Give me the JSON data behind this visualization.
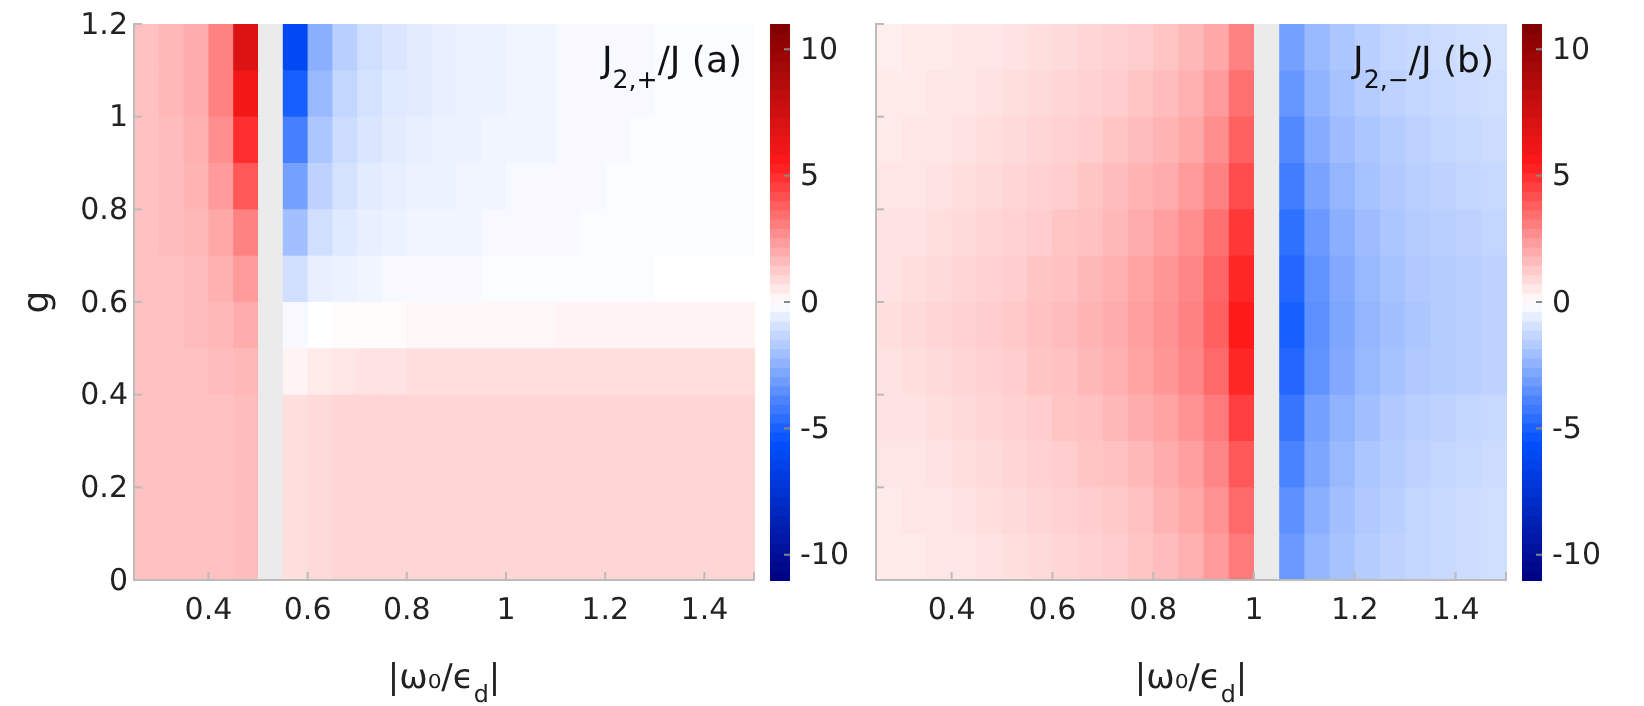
{
  "chart_data": [
    {
      "type": "heatmap",
      "title": "J$_{2,+}$/J (a)",
      "xlabel": "|ω₀/ϵ$_{d}$|",
      "ylabel": "g",
      "x": [
        0.275,
        0.325,
        0.375,
        0.425,
        0.475,
        0.525,
        0.575,
        0.625,
        0.675,
        0.725,
        0.775,
        0.825,
        0.875,
        0.925,
        0.975,
        1.025,
        1.075,
        1.125,
        1.175,
        1.225,
        1.275,
        1.325,
        1.375,
        1.425,
        1.475
      ],
      "y": [
        1.15,
        1.05,
        0.95,
        0.85,
        0.75,
        0.65,
        0.55,
        0.45,
        0.35,
        0.25,
        0.15,
        0.05
      ],
      "xlim": [
        0.25,
        1.5
      ],
      "xticks": [
        0.4,
        0.6,
        0.8,
        1,
        1.2,
        1.4
      ],
      "ylim": [
        0,
        1.2
      ],
      "yticks": [
        0,
        0.2,
        0.4,
        0.6,
        0.8,
        1,
        1.2
      ],
      "clim": [
        -11,
        11
      ],
      "cticks": [
        -10,
        -5,
        0,
        5,
        10
      ],
      "cells": [
        [
          1.5,
          1.7,
          2,
          3,
          7,
          null,
          -6,
          -2.5,
          -1.5,
          -1,
          -0.8,
          -0.6,
          -0.5,
          -0.4,
          -0.4,
          -0.3,
          -0.3,
          -0.2,
          -0.2,
          -0.2,
          -0.2,
          -0.1,
          -0.1,
          -0.1,
          -0.1
        ],
        [
          1.5,
          1.7,
          2,
          3,
          6,
          null,
          -5,
          -2.2,
          -1.3,
          -0.9,
          -0.7,
          -0.6,
          -0.5,
          -0.4,
          -0.4,
          -0.3,
          -0.3,
          -0.2,
          -0.2,
          -0.2,
          -0.2,
          -0.1,
          -0.1,
          -0.1,
          -0.1
        ],
        [
          1.5,
          1.6,
          1.9,
          2.7,
          5,
          null,
          -4,
          -1.8,
          -1.1,
          -0.8,
          -0.6,
          -0.5,
          -0.4,
          -0.4,
          -0.3,
          -0.3,
          -0.3,
          -0.2,
          -0.2,
          -0.2,
          -0.1,
          -0.1,
          -0.1,
          -0.1,
          -0.1
        ],
        [
          1.5,
          1.6,
          1.8,
          2.4,
          4,
          null,
          -3,
          -1.4,
          -0.9,
          -0.6,
          -0.5,
          -0.4,
          -0.4,
          -0.3,
          -0.3,
          -0.2,
          -0.2,
          -0.2,
          -0.2,
          -0.1,
          -0.1,
          -0.1,
          -0.1,
          -0.1,
          -0.1
        ],
        [
          1.5,
          1.6,
          1.7,
          2.1,
          3,
          null,
          -2,
          -1,
          -0.7,
          -0.5,
          -0.4,
          -0.3,
          -0.3,
          -0.3,
          -0.2,
          -0.2,
          -0.2,
          -0.2,
          -0.1,
          -0.1,
          -0.1,
          -0.1,
          -0.1,
          -0.1,
          -0.1
        ],
        [
          1.5,
          1.5,
          1.6,
          1.9,
          2.4,
          null,
          -1,
          -0.5,
          -0.4,
          -0.3,
          -0.2,
          -0.2,
          -0.2,
          -0.2,
          -0.1,
          -0.1,
          -0.1,
          -0.1,
          -0.1,
          -0.1,
          -0.1,
          0,
          0,
          0,
          0
        ],
        [
          1.5,
          1.5,
          1.6,
          1.7,
          2,
          null,
          -0.2,
          0,
          0.1,
          0.1,
          0.1,
          0.2,
          0.2,
          0.2,
          0.2,
          0.2,
          0.2,
          0.3,
          0.3,
          0.3,
          0.3,
          0.3,
          0.3,
          0.3,
          0.3
        ],
        [
          1.5,
          1.5,
          1.5,
          1.6,
          1.7,
          null,
          0.3,
          0.5,
          0.6,
          0.7,
          0.7,
          0.8,
          0.8,
          0.8,
          0.8,
          0.8,
          0.8,
          0.8,
          0.8,
          0.8,
          0.8,
          0.8,
          0.8,
          0.8,
          0.8
        ],
        [
          1.5,
          1.5,
          1.5,
          1.5,
          1.6,
          null,
          0.8,
          0.9,
          1,
          1,
          1,
          1,
          1,
          1,
          1,
          1,
          1,
          1,
          1,
          1,
          1,
          1,
          1,
          1,
          1
        ],
        [
          1.5,
          1.5,
          1.5,
          1.5,
          1.6,
          null,
          0.8,
          0.9,
          1,
          1,
          1,
          1,
          1,
          1,
          1,
          1,
          1,
          1,
          1,
          1,
          1,
          1,
          1,
          1,
          1
        ],
        [
          1.5,
          1.5,
          1.5,
          1.5,
          1.6,
          null,
          0.8,
          0.9,
          1,
          1,
          1,
          1,
          1,
          1,
          1,
          1,
          1,
          1,
          1,
          1,
          1,
          1,
          1,
          1,
          1
        ],
        [
          1.5,
          1.5,
          1.5,
          1.5,
          1.6,
          null,
          0.8,
          0.9,
          1,
          1,
          1,
          1,
          1,
          1,
          1,
          1,
          1,
          1,
          1,
          1,
          1,
          1,
          1,
          1,
          1
        ]
      ]
    },
    {
      "type": "heatmap",
      "title": "J$_{2,−}$/J (b)",
      "xlabel": "|ω₀/ϵ$_{d}$|",
      "x": [
        0.275,
        0.325,
        0.375,
        0.425,
        0.475,
        0.525,
        0.575,
        0.625,
        0.675,
        0.725,
        0.775,
        0.825,
        0.875,
        0.925,
        0.975,
        1.025,
        1.075,
        1.125,
        1.175,
        1.225,
        1.275,
        1.325,
        1.375,
        1.425,
        1.475
      ],
      "y": [
        1.15,
        1.05,
        0.95,
        0.85,
        0.75,
        0.65,
        0.55,
        0.45,
        0.35,
        0.25,
        0.15,
        0.05
      ],
      "xlim": [
        0.25,
        1.5
      ],
      "xticks": [
        0.4,
        0.6,
        0.8,
        1,
        1.2,
        1.4
      ],
      "ylim": [
        0,
        1.2
      ],
      "yticks": [
        0,
        0.2,
        0.4,
        0.6,
        0.8,
        1,
        1.2
      ],
      "tick_labels": "x",
      "clim": [
        -11,
        11
      ],
      "cticks": [
        -10,
        -5,
        0,
        5,
        10
      ],
      "cells": [
        [
          0.4,
          0.5,
          0.5,
          0.6,
          0.6,
          0.7,
          0.8,
          0.9,
          1,
          1.1,
          1.2,
          1.4,
          1.7,
          2.1,
          3,
          null,
          -3,
          -2.2,
          -1.8,
          -1.5,
          -1.3,
          -1.2,
          -1.1,
          -1,
          -0.9
        ],
        [
          0.5,
          0.5,
          0.6,
          0.6,
          0.7,
          0.8,
          0.9,
          1,
          1.1,
          1.2,
          1.4,
          1.6,
          1.9,
          2.4,
          3.4,
          null,
          -3.3,
          -2.4,
          -1.9,
          -1.6,
          -1.4,
          -1.3,
          -1.2,
          -1.1,
          -1
        ],
        [
          0.5,
          0.6,
          0.6,
          0.7,
          0.8,
          0.9,
          1,
          1.1,
          1.2,
          1.4,
          1.6,
          1.8,
          2.1,
          2.7,
          3.8,
          null,
          -3.7,
          -2.6,
          -2.1,
          -1.8,
          -1.6,
          -1.4,
          -1.3,
          -1.2,
          -1.1
        ],
        [
          0.6,
          0.6,
          0.7,
          0.8,
          0.9,
          1,
          1.1,
          1.2,
          1.4,
          1.6,
          1.8,
          2,
          2.4,
          3,
          4.3,
          null,
          -4.1,
          -2.9,
          -2.3,
          -1.9,
          -1.7,
          -1.5,
          -1.4,
          -1.3,
          -1.2
        ],
        [
          0.7,
          0.7,
          0.8,
          0.9,
          1,
          1.1,
          1.2,
          1.4,
          1.5,
          1.7,
          2,
          2.3,
          2.7,
          3.4,
          4.8,
          null,
          -4.5,
          -3.2,
          -2.5,
          -2.1,
          -1.8,
          -1.6,
          -1.5,
          -1.4,
          -1.3
        ],
        [
          0.7,
          0.8,
          0.9,
          1,
          1.1,
          1.2,
          1.4,
          1.5,
          1.7,
          1.9,
          2.2,
          2.5,
          2.9,
          3.7,
          5.2,
          null,
          -4.8,
          -3.4,
          -2.7,
          -2.2,
          -1.9,
          -1.7,
          -1.6,
          -1.5,
          -1.4
        ],
        [
          0.8,
          0.9,
          1,
          1.1,
          1.2,
          1.3,
          1.5,
          1.6,
          1.8,
          2,
          2.3,
          2.6,
          3,
          3.8,
          5.5,
          null,
          -5,
          -3.5,
          -2.8,
          -2.3,
          -2,
          -1.8,
          -1.6,
          -1.5,
          -1.4
        ],
        [
          0.7,
          0.8,
          0.9,
          1,
          1.1,
          1.2,
          1.4,
          1.5,
          1.7,
          1.9,
          2.2,
          2.5,
          2.9,
          3.6,
          5.2,
          null,
          -4.8,
          -3.4,
          -2.7,
          -2.2,
          -1.9,
          -1.7,
          -1.6,
          -1.5,
          -1.4
        ],
        [
          0.7,
          0.7,
          0.8,
          0.9,
          1,
          1.1,
          1.2,
          1.4,
          1.5,
          1.7,
          2,
          2.2,
          2.6,
          3.2,
          4.6,
          null,
          -4.3,
          -3,
          -2.4,
          -2,
          -1.7,
          -1.5,
          -1.4,
          -1.3,
          -1.2
        ],
        [
          0.6,
          0.6,
          0.7,
          0.8,
          0.9,
          1,
          1.1,
          1.2,
          1.4,
          1.5,
          1.7,
          2,
          2.3,
          2.9,
          4,
          null,
          -3.9,
          -2.8,
          -2.2,
          -1.8,
          -1.6,
          -1.4,
          -1.3,
          -1.2,
          -1.1
        ],
        [
          0.5,
          0.6,
          0.6,
          0.7,
          0.8,
          0.9,
          1,
          1.1,
          1.2,
          1.3,
          1.5,
          1.8,
          2.1,
          2.6,
          3.6,
          null,
          -3.5,
          -2.5,
          -2,
          -1.7,
          -1.5,
          -1.3,
          -1.2,
          -1.1,
          -1
        ],
        [
          0.5,
          0.5,
          0.6,
          0.6,
          0.7,
          0.8,
          0.9,
          1,
          1.1,
          1.2,
          1.4,
          1.6,
          1.9,
          2.4,
          3.2,
          null,
          -3.2,
          -2.3,
          -1.9,
          -1.6,
          -1.4,
          -1.3,
          -1.2,
          -1.1,
          -1
        ]
      ]
    }
  ]
}
